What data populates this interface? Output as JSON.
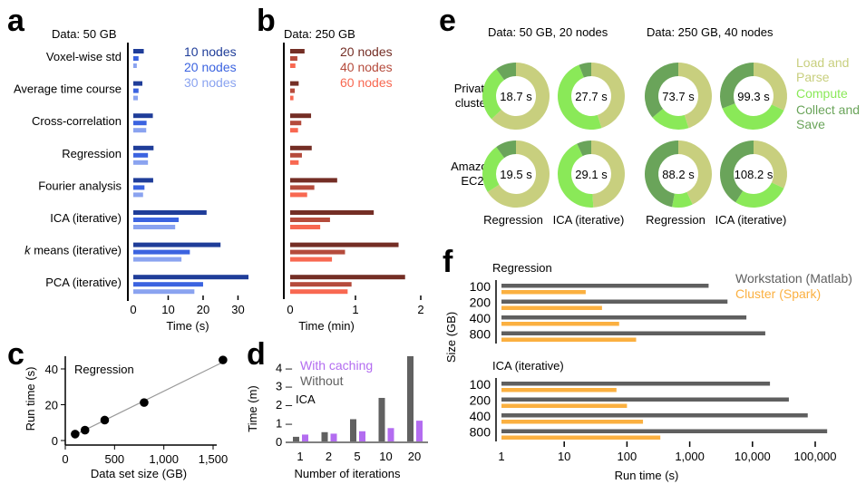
{
  "panels": {
    "a": "a",
    "b": "b",
    "c": "c",
    "d": "d",
    "e": "e",
    "f": "f"
  },
  "chart_data": [
    {
      "id": "a",
      "type": "bar",
      "orientation": "horizontal",
      "title": "Data: 50 GB",
      "xlabel": "Time (s)",
      "xlim": [
        0,
        35
      ],
      "xticks": [
        "0",
        "10",
        "20",
        "30"
      ],
      "xtick_values": [
        0,
        10,
        20,
        30
      ],
      "categories": [
        "Voxel-wise std",
        "Average time course",
        "Cross-correlation",
        "Regression",
        "Fourier analysis",
        "ICA (iterative)",
        "k means (iterative)",
        "PCA (iterative)"
      ],
      "italic_prefix": {
        "k means (iterative)": "k"
      },
      "legend_position": "top-right",
      "series": [
        {
          "name": "10 nodes",
          "color": "#1f3d99",
          "values": [
            3.0,
            2.6,
            5.6,
            5.8,
            5.7,
            21,
            25,
            33
          ]
        },
        {
          "name": "20 nodes",
          "color": "#3b63e0",
          "values": [
            1.5,
            1.5,
            3.8,
            4.2,
            3.2,
            13,
            16.2,
            20
          ]
        },
        {
          "name": "30 nodes",
          "color": "#8aa3f0",
          "values": [
            1.0,
            1.3,
            3.7,
            4.2,
            2.8,
            12,
            13.8,
            17.5
          ]
        }
      ]
    },
    {
      "id": "b",
      "type": "bar",
      "orientation": "horizontal",
      "title": "Data: 250 GB",
      "xlabel": "Time (min)",
      "xlim": [
        0,
        2
      ],
      "xticks": [
        "0",
        "1",
        "2"
      ],
      "xtick_values": [
        0,
        1,
        2
      ],
      "legend_position": "top-right",
      "series": [
        {
          "name": "20 nodes",
          "color": "#742e25",
          "values": [
            0.22,
            0.13,
            0.32,
            0.33,
            0.72,
            1.28,
            1.66,
            1.76
          ]
        },
        {
          "name": "40 nodes",
          "color": "#b54b3c",
          "values": [
            0.11,
            0.07,
            0.17,
            0.18,
            0.37,
            0.61,
            0.84,
            0.94
          ]
        },
        {
          "name": "60 nodes",
          "color": "#f86851",
          "values": [
            0.08,
            0.05,
            0.12,
            0.13,
            0.26,
            0.46,
            0.64,
            0.88
          ]
        }
      ]
    },
    {
      "id": "c",
      "type": "scatter",
      "annotation": "Regression",
      "xlabel": "Data set size (GB)",
      "ylabel": "Run time (s)",
      "xlim": [
        0,
        1650
      ],
      "ylim": [
        0,
        50
      ],
      "xticks": [
        "0",
        "500",
        "1,000",
        "1,500"
      ],
      "xtick_values": [
        0,
        500,
        1000,
        1500
      ],
      "yticks": [
        "0",
        "20",
        "40"
      ],
      "ytick_values": [
        0,
        20,
        40
      ],
      "x": [
        100,
        200,
        400,
        800,
        1600
      ],
      "y": [
        3.6,
        5.8,
        11.4,
        21.2,
        45
      ],
      "fit_line": {
        "x": [
          100,
          1600
        ],
        "y": [
          3.2,
          43.8
        ],
        "color": "#999999"
      },
      "point_color": "#000000"
    },
    {
      "id": "d",
      "type": "bar",
      "annotation": "ICA",
      "xlabel": "Number of iterations",
      "ylabel": "Time (m)",
      "ylim": [
        0,
        4.7
      ],
      "categories": [
        "1",
        "2",
        "5",
        "10",
        "20"
      ],
      "yticks": [
        "0",
        "1 –",
        "2 –",
        "3 –",
        "4 –"
      ],
      "ytick_values": [
        0,
        1,
        2,
        3,
        4
      ],
      "legend_position": "top-left",
      "series": [
        {
          "name": "Without",
          "color": "#616161",
          "values": [
            0.25,
            0.5,
            1.2,
            2.35,
            4.6
          ]
        },
        {
          "name": "With caching",
          "color": "#b36cf0",
          "values": [
            0.37,
            0.42,
            0.55,
            0.72,
            1.12
          ]
        }
      ]
    },
    {
      "id": "e",
      "type": "pie",
      "style": "donut",
      "groups": [
        "Data: 50 GB, 20 nodes",
        "Data: 250 GB, 40 nodes"
      ],
      "row_labels": [
        [
          "Private",
          "cluster"
        ],
        [
          "Amazon",
          "EC2"
        ]
      ],
      "column_labels": [
        "Regression",
        "ICA (iterative)",
        "Regression",
        "ICA (iterative)"
      ],
      "segments": [
        {
          "name": "Load and Parse",
          "lines": [
            "Load and",
            "Parse"
          ],
          "color": "#c8cf7e"
        },
        {
          "name": "Compute",
          "lines": [
            "Compute"
          ],
          "color": "#8ae958"
        },
        {
          "name": "Collect and Save",
          "lines": [
            "Collect and",
            "Save"
          ],
          "color": "#6aa45a"
        }
      ],
      "legend_position": "right",
      "donuts": [
        {
          "row": "Private cluster",
          "column": "Regression",
          "group": "Data: 50 GB, 20 nodes",
          "total_label": "18.7 s",
          "fractions": [
            0.63,
            0.27,
            0.1
          ]
        },
        {
          "row": "Private cluster",
          "column": "ICA (iterative)",
          "group": "Data: 50 GB, 20 nodes",
          "total_label": "27.7 s",
          "fractions": [
            0.45,
            0.49,
            0.06
          ]
        },
        {
          "row": "Private cluster",
          "column": "Regression",
          "group": "Data: 250 GB, 40 nodes",
          "total_label": "73.7 s",
          "fractions": [
            0.45,
            0.19,
            0.36
          ]
        },
        {
          "row": "Private cluster",
          "column": "ICA (iterative)",
          "group": "Data: 250 GB, 40 nodes",
          "total_label": "99.3 s",
          "fractions": [
            0.32,
            0.37,
            0.31
          ]
        },
        {
          "row": "Amazon EC2",
          "column": "Regression",
          "group": "Data: 50 GB, 20 nodes",
          "total_label": "19.5 s",
          "fractions": [
            0.66,
            0.24,
            0.1
          ]
        },
        {
          "row": "Amazon EC2",
          "column": "ICA (iterative)",
          "group": "Data: 50 GB, 20 nodes",
          "total_label": "29.1 s",
          "fractions": [
            0.49,
            0.44,
            0.07
          ]
        },
        {
          "row": "Amazon EC2",
          "column": "Regression",
          "group": "Data: 250 GB, 40 nodes",
          "total_label": "88.2 s",
          "fractions": [
            0.43,
            0.1,
            0.47
          ]
        },
        {
          "row": "Amazon EC2",
          "column": "ICA (iterative)",
          "group": "Data: 250 GB, 40 nodes",
          "total_label": "108.2 s",
          "fractions": [
            0.32,
            0.27,
            0.41
          ]
        }
      ]
    },
    {
      "id": "f",
      "type": "bar",
      "orientation": "horizontal",
      "xscale": "log",
      "xlabel": "Run time (s)",
      "ylabel": "Size (GB)",
      "xlim": [
        1,
        200000
      ],
      "xticks": [
        "1",
        "10",
        "100",
        "1,000",
        "10,000",
        "100,000"
      ],
      "xtick_values": [
        1,
        10,
        100,
        1000,
        10000,
        100000
      ],
      "legend_position": "top-right",
      "series_names": [
        {
          "name": "Workstation (Matlab)",
          "color": "#5f5f5f"
        },
        {
          "name": "Cluster (Spark)",
          "color": "#fbb040"
        }
      ],
      "groups": [
        {
          "title": "Regression",
          "categories": [
            "100",
            "200",
            "400",
            "800"
          ],
          "workstation": [
            2000,
            4000,
            8000,
            16000
          ],
          "cluster": [
            22,
            40,
            75,
            140
          ]
        },
        {
          "title": "ICA (iterative)",
          "categories": [
            "100",
            "200",
            "400",
            "800"
          ],
          "workstation": [
            19000,
            38000,
            76000,
            155000
          ],
          "cluster": [
            68,
            100,
            180,
            340
          ]
        }
      ]
    }
  ]
}
